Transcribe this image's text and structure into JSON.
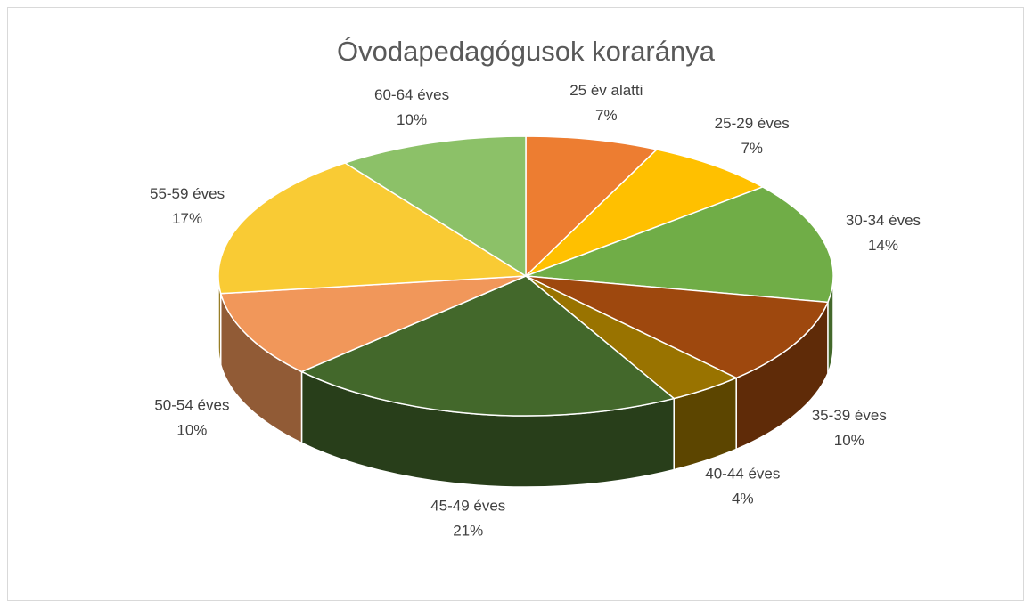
{
  "chart_data": {
    "type": "pie",
    "title": "Óvodapedagógusok koraránya",
    "categories": [
      "25 év alatti",
      "25-29 éves",
      "30-34 éves",
      "35-39 éves",
      "40-44 éves",
      "45-49 éves",
      "50-54 éves",
      "55-59 éves",
      "60-64 éves"
    ],
    "values": [
      7,
      7,
      14,
      10,
      4,
      21,
      10,
      17,
      10
    ],
    "value_labels": [
      "7%",
      "7%",
      "14%",
      "10%",
      "4%",
      "21%",
      "10%",
      "17%",
      "10%"
    ],
    "colors": [
      "#ED7D31",
      "#FFC000",
      "#70AD47",
      "#9E480E",
      "#997300",
      "#43682B",
      "#F1975A",
      "#F9CB34",
      "#8CC168"
    ]
  }
}
